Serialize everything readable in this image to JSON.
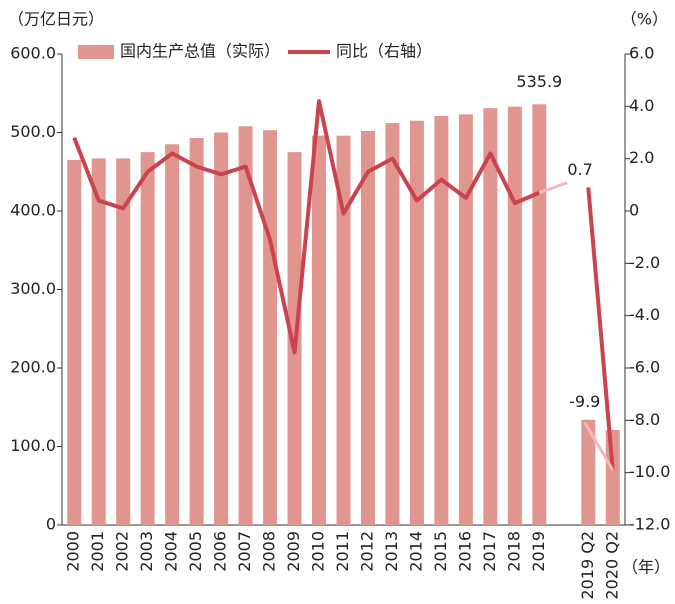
{
  "chart_data": {
    "type": "bar-line",
    "y_label": "（万亿日元）",
    "y2_label": "（%）",
    "x_label": "（年）",
    "categories": [
      "2000",
      "2001",
      "2002",
      "2003",
      "2004",
      "2005",
      "2006",
      "2007",
      "2008",
      "2009",
      "2010",
      "2011",
      "2012",
      "2013",
      "2014",
      "2015",
      "2016",
      "2017",
      "2018",
      "2019",
      null,
      "2019 Q2",
      "2020 Q2"
    ],
    "series": [
      {
        "name": "国内生产总值（实际）",
        "type": "bar",
        "color": "#e0968f",
        "labeled": [
          19
        ],
        "values": [
          465,
          467,
          467,
          475,
          485,
          493,
          500,
          508,
          503,
          475,
          496,
          496,
          502,
          512,
          515,
          521,
          523,
          531,
          533,
          535.9,
          null,
          134,
          121
        ]
      },
      {
        "name": "同比（右轴）",
        "type": "line",
        "axis": "y2",
        "color": "#c9444f",
        "labeled": [
          19,
          22
        ],
        "values": [
          2.8,
          0.4,
          0.1,
          1.5,
          2.2,
          1.7,
          1.4,
          1.7,
          -1.1,
          -5.4,
          4.2,
          -0.1,
          1.5,
          2.0,
          0.4,
          1.2,
          0.5,
          2.2,
          0.3,
          0.7,
          null,
          0.9,
          -9.9
        ]
      }
    ],
    "ylim": [
      0,
      600
    ],
    "yticks": [
      0,
      {
        "value": 100,
        "label": "100.0"
      },
      {
        "value": 200,
        "label": "200.0"
      },
      {
        "value": 300,
        "label": "300.0"
      },
      {
        "value": 400,
        "label": "400.0"
      },
      {
        "value": 500,
        "label": "500.0"
      },
      {
        "value": 600,
        "label": "600.0"
      }
    ],
    "y2lim": [
      -12,
      6
    ],
    "y2ticks": [
      {
        "value": -12,
        "label": "-12.0"
      },
      {
        "value": -10,
        "label": "-10.0"
      },
      {
        "value": -8,
        "label": "-8.0"
      },
      {
        "value": -6,
        "label": "-6.0"
      },
      {
        "value": -4,
        "label": "-4.0"
      },
      {
        "value": -2,
        "label": "-2.0"
      },
      0,
      {
        "value": 2,
        "label": "2.0"
      },
      {
        "value": 4,
        "label": "4.0"
      },
      {
        "value": 6,
        "label": "6.0"
      }
    ]
  }
}
